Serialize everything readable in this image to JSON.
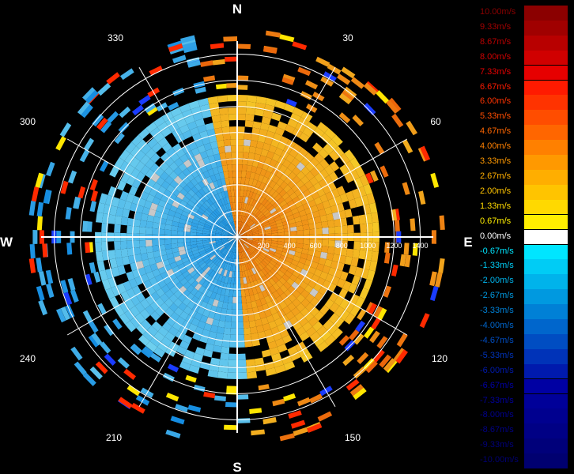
{
  "chart_data": {
    "type": "heatmap",
    "title": "",
    "compass": {
      "north": "N",
      "east": "E",
      "south": "S",
      "west": "W"
    },
    "azimuth_labels": [
      "30",
      "60",
      "120",
      "150",
      "210",
      "240",
      "300",
      "330"
    ],
    "range_labels": [
      "200",
      "400",
      "600",
      "800",
      "1000",
      "1200",
      "1400"
    ],
    "range_max": 1500,
    "colors": {
      "approaching": "#1ab4e6",
      "receding": "#f5a623",
      "missing": "#c8c8c8",
      "rings": "#ffffff"
    },
    "legend": [
      {
        "label": "10.00m/s",
        "color": "#8b0000"
      },
      {
        "label": "9.33m/s",
        "color": "#a00000"
      },
      {
        "label": "8.67m/s",
        "color": "#b80000"
      },
      {
        "label": "8.00m/s",
        "color": "#d00000"
      },
      {
        "label": "7.33m/s",
        "color": "#e60000"
      },
      {
        "label": "6.67m/s",
        "color": "#ff1a00"
      },
      {
        "label": "6.00m/s",
        "color": "#ff3300"
      },
      {
        "label": "5.33m/s",
        "color": "#ff4d00"
      },
      {
        "label": "4.67m/s",
        "color": "#ff6600"
      },
      {
        "label": "4.00m/s",
        "color": "#ff8000"
      },
      {
        "label": "3.33m/s",
        "color": "#ff9900"
      },
      {
        "label": "2.67m/s",
        "color": "#ffae00"
      },
      {
        "label": "2.00m/s",
        "color": "#ffc400"
      },
      {
        "label": "1.33m/s",
        "color": "#ffd900"
      },
      {
        "label": "0.67m/s",
        "color": "#ffee00"
      },
      {
        "label": "0.00m/s",
        "color": "#ffffff"
      },
      {
        "label": "-0.67m/s",
        "color": "#00e5ff"
      },
      {
        "label": "-1.33m/s",
        "color": "#00ccf5"
      },
      {
        "label": "-2.00m/s",
        "color": "#00b3eb"
      },
      {
        "label": "-2.67m/s",
        "color": "#0099e0"
      },
      {
        "label": "-3.33m/s",
        "color": "#0080d6"
      },
      {
        "label": "-4.00m/s",
        "color": "#0066cc"
      },
      {
        "label": "-4.67m/s",
        "color": "#004dc2"
      },
      {
        "label": "-5.33m/s",
        "color": "#0033b8"
      },
      {
        "label": "-6.00m/s",
        "color": "#001aad"
      },
      {
        "label": "-6.67m/s",
        "color": "#0000a3"
      },
      {
        "label": "-7.33m/s",
        "color": "#000099"
      },
      {
        "label": "-8.00m/s",
        "color": "#00008f"
      },
      {
        "label": "-8.67m/s",
        "color": "#000085"
      },
      {
        "label": "-9.33m/s",
        "color": "#00007a"
      },
      {
        "label": "-10.00m/s",
        "color": "#000070"
      }
    ]
  }
}
